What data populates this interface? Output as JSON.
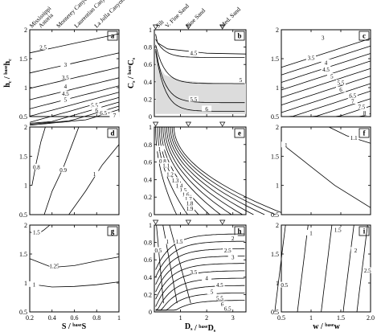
{
  "chart_data": [
    {
      "id": "a",
      "type": "contour",
      "panel_label": "a",
      "xlabel": "",
      "ylabel_main": "h",
      "ylabel_sub": "c",
      "ylabel_base": "base",
      "ylabel_tail": "h",
      "ylabel_tail_sub": "c",
      "xlim": [
        0.2,
        1.0
      ],
      "ylim": [
        0.5,
        2.0
      ],
      "xticks": [
        0.2,
        0.4,
        0.6,
        0.8,
        1.0
      ],
      "xticklabels": [],
      "yticks": [
        0.5,
        1.0,
        1.5,
        2.0
      ],
      "yticklabels": [
        "0.5",
        "1",
        "1.5",
        "2"
      ],
      "contour_levels": [
        "2.5",
        "3",
        "3.5",
        "4",
        "4.5",
        "5",
        "5.5",
        "6",
        "6.5",
        "7"
      ],
      "top_labels": [
        "Mississippi",
        "Astoria",
        "Monterey Canyon",
        "Laurentian Canyon",
        "La Jolla Canyon"
      ],
      "top_label_x": [
        0.22,
        0.3,
        0.46,
        0.62,
        0.8
      ]
    },
    {
      "id": "b",
      "type": "contour",
      "panel_label": "b",
      "ylabel_main": "C",
      "ylabel_sub": "s",
      "ylabel_base": "base",
      "ylabel_tail": "C",
      "ylabel_tail_sub": "s",
      "xlim": [
        0,
        3.5
      ],
      "ylim": [
        0,
        1.0
      ],
      "yticks": [
        0,
        0.2,
        0.4,
        0.6,
        0.8,
        1.0
      ],
      "yticklabels": [
        "0",
        "0.2",
        "0.4",
        "0.6",
        "0.8",
        "1"
      ],
      "contour_levels": [
        "4.5",
        "5",
        "5.5",
        "6"
      ],
      "top_labels": [
        "Silt",
        "V. Fine Sand",
        "Fine Sand",
        "Med. Sand"
      ],
      "top_label_x": [
        0.15,
        0.5,
        1.3,
        2.6
      ]
    },
    {
      "id": "c",
      "type": "contour",
      "panel_label": "c",
      "xlim": [
        0.5,
        2.0
      ],
      "ylim": [
        0.5,
        2.0
      ],
      "yticks": [
        0.5,
        1.0,
        1.5,
        2.0
      ],
      "yticklabels": [
        "0.5",
        "1",
        "1.5",
        "2"
      ],
      "contour_levels": [
        "3",
        "3.5",
        "4",
        "4.5",
        "5",
        "5.5",
        "6",
        "6.5",
        "7",
        "7.5",
        "8"
      ]
    },
    {
      "id": "d",
      "type": "contour",
      "panel_label": "d",
      "xlim": [
        0.2,
        1.0
      ],
      "ylim": [
        0.5,
        2.0
      ],
      "yticks": [
        0.5,
        1.0,
        1.5,
        2.0
      ],
      "yticklabels": [
        "0.5",
        "1",
        "1.5",
        "2"
      ],
      "contour_levels": [
        "0.8",
        "0.9",
        "1"
      ]
    },
    {
      "id": "e",
      "type": "contour",
      "panel_label": "e",
      "xlim": [
        0,
        3.5
      ],
      "ylim": [
        0,
        1.0
      ],
      "yticks": [
        0,
        0.2,
        0.4,
        0.6,
        0.8,
        1.0
      ],
      "yticklabels": [
        "0",
        "0.2",
        "0.4",
        "0.6",
        "0.8",
        "1"
      ],
      "contour_levels": [
        "0.8",
        "1",
        "1.1",
        "1.2",
        "1.3",
        "1.4",
        "1.5",
        "1.6",
        "1.7",
        "1.8",
        "1.9"
      ]
    },
    {
      "id": "f",
      "type": "contour",
      "panel_label": "f",
      "xlim": [
        0.5,
        2.0
      ],
      "ylim": [
        0.5,
        2.0
      ],
      "yticks": [
        0.5,
        1.0,
        1.5,
        2.0
      ],
      "yticklabels": [
        "0.5",
        "1",
        "1.5",
        "2"
      ],
      "contour_levels": [
        "1",
        "1.1"
      ]
    },
    {
      "id": "g",
      "type": "contour",
      "panel_label": "g",
      "xlabel_main": "S",
      "xlabel_base": "base",
      "xlabel_tail": "S",
      "xlim": [
        0.2,
        1.0
      ],
      "ylim": [
        0.5,
        2.0
      ],
      "xticks": [
        0.2,
        0.4,
        0.6,
        0.8,
        1.0
      ],
      "xticklabels": [
        "0.2",
        "0.4",
        "0.6",
        "0.8",
        "1"
      ],
      "yticks": [
        0.5,
        1.0,
        1.5,
        2.0
      ],
      "yticklabels": [
        "0.5",
        "1",
        "1.5",
        "2"
      ],
      "contour_levels": [
        "1",
        "1.25",
        "1.5"
      ]
    },
    {
      "id": "h",
      "type": "contour",
      "panel_label": "h",
      "xlabel_main": "D",
      "xlabel_sub": "s",
      "xlabel_base": "base",
      "xlabel_tail": "D",
      "xlabel_tail_sub": "s",
      "xlim": [
        0,
        3.5
      ],
      "ylim": [
        0,
        1.0
      ],
      "xticks": [
        1,
        2,
        3
      ],
      "xticklabels": [
        "1",
        "2",
        "3"
      ],
      "yticks": [
        0,
        0.2,
        0.4,
        0.6,
        0.8,
        1.0
      ],
      "yticklabels": [
        "0",
        "0.2",
        "0.4",
        "0.6",
        "0.8",
        "1"
      ],
      "contour_levels": [
        "0.5",
        "1",
        "1.5",
        "2",
        "2.5",
        "3",
        "3.5",
        "4",
        "4.5",
        "5",
        "5.5",
        "6",
        "6.5"
      ]
    },
    {
      "id": "i",
      "type": "contour",
      "panel_label": "i",
      "xlabel_main": "w",
      "xlabel_base": "base",
      "xlabel_tail": "w",
      "xlim": [
        0.5,
        2.0
      ],
      "ylim": [
        0.5,
        2.0
      ],
      "xticks": [
        0.5,
        1.0,
        1.5,
        2.0
      ],
      "xticklabels": [
        "0.5",
        "1",
        "1.5",
        "2.0"
      ],
      "yticks": [
        0.5,
        1.0,
        1.5,
        2.0
      ],
      "yticklabels": [
        "0.5",
        "1",
        "1.5",
        "2"
      ],
      "contour_levels": [
        "0.5",
        "1",
        "1.5",
        "2",
        "2.5"
      ]
    }
  ]
}
